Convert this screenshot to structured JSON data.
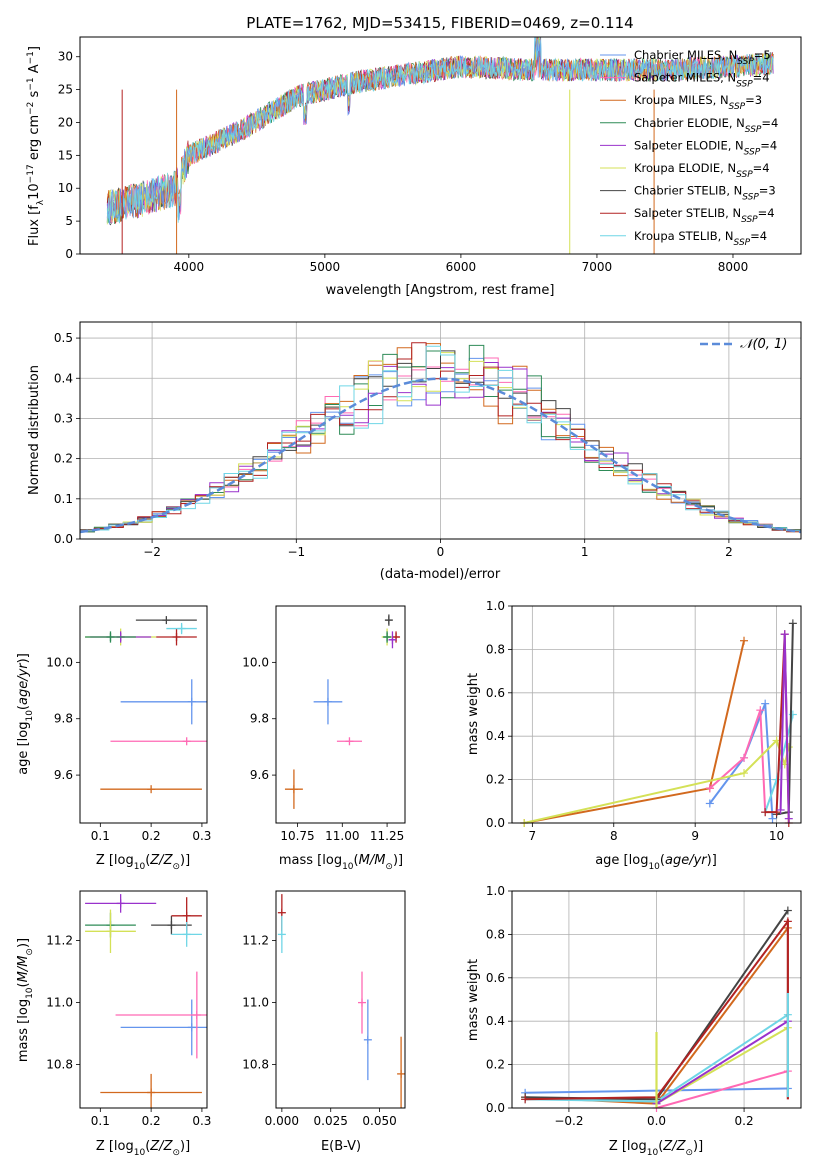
{
  "chart_data": [
    {
      "type": "line",
      "title": "PLATE=1762, MJD=53415, FIBERID=0469, z=0.114",
      "xlabel": "wavelength [Angstrom, rest frame]",
      "ylabel": "Flux [f_λ 10^-17 erg cm^-2 s^-1 A^-1]",
      "xlim": [
        3200,
        8500
      ],
      "ylim": [
        0,
        33
      ],
      "xticks": [
        "4000",
        "5000",
        "6000",
        "7000",
        "8000"
      ],
      "yticks": [
        "0",
        "5",
        "10",
        "15",
        "20",
        "25",
        "30"
      ],
      "legend_position": "top-right",
      "continuum": {
        "x": [
          3400,
          3600,
          3900,
          4000,
          4400,
          4800,
          5000,
          5200,
          5500,
          6000,
          6500,
          7000,
          7500,
          8000,
          8300
        ],
        "y": [
          7,
          8,
          10,
          15,
          19,
          24,
          25,
          26,
          27,
          28.5,
          28,
          28,
          28,
          28.5,
          29
        ]
      },
      "series": [
        {
          "name": "Chabrier MILES, N_SSP=5",
          "color": "#6495ed"
        },
        {
          "name": "Salpeter MILES, N_SSP=4",
          "color": "#ff69b4"
        },
        {
          "name": "Kroupa MILES, N_SSP=3",
          "color": "#d2691e"
        },
        {
          "name": "Chabrier ELODIE, N_SSP=4",
          "color": "#2e8b57"
        },
        {
          "name": "Salpeter ELODIE, N_SSP=4",
          "color": "#9932cc"
        },
        {
          "name": "Kroupa ELODIE, N_SSP=4",
          "color": "#d4e157"
        },
        {
          "name": "Chabrier STELIB, N_SSP=3",
          "color": "#444444"
        },
        {
          "name": "Salpeter STELIB, N_SSP=4",
          "color": "#b22222"
        },
        {
          "name": "Kroupa STELIB, N_SSP=4",
          "color": "#6fd6e6"
        }
      ]
    },
    {
      "type": "line",
      "xlabel": "(data-model)/error",
      "ylabel": "Normed distribution",
      "xlim": [
        -2.5,
        2.5
      ],
      "ylim": [
        0,
        0.54
      ],
      "xticks": [
        "−2",
        "−1",
        "0",
        "1",
        "2"
      ],
      "yticks": [
        "0.0",
        "0.1",
        "0.2",
        "0.3",
        "0.4",
        "0.5"
      ],
      "grid": true,
      "legend": "𝒩(0, 1)",
      "legend_position": "top-right",
      "bin_width": 0.1
    },
    {
      "type": "scatter",
      "xlabel": "Z [log10(Z/Z⊙)]",
      "ylabel": "age [log10(age/yr)]",
      "xlim": [
        0.06,
        0.31
      ],
      "ylim": [
        9.43,
        10.2
      ],
      "xticks": [
        "0.1",
        "0.2",
        "0.3"
      ],
      "yticks": [
        "9.6",
        "9.8",
        "10.0"
      ],
      "points": [
        {
          "x": 0.28,
          "xerr": 0.14,
          "y": 9.86,
          "yerr": 0.08,
          "color": "#6495ed"
        },
        {
          "x": 0.27,
          "xerr": 0.15,
          "y": 9.72,
          "yerr": 0.0,
          "color": "#ff69b4"
        },
        {
          "x": 0.2,
          "xerr": 0.1,
          "y": 9.55,
          "yerr": 0.0,
          "color": "#d2691e"
        },
        {
          "x": 0.14,
          "xerr": 0.07,
          "y": 10.09,
          "yerr": 0.03,
          "color": "#d4e157"
        },
        {
          "x": 0.14,
          "xerr": 0.06,
          "y": 10.09,
          "yerr": 0.02,
          "color": "#9932cc"
        },
        {
          "x": 0.12,
          "xerr": 0.05,
          "y": 10.09,
          "yerr": 0.02,
          "color": "#2e8b57"
        },
        {
          "x": 0.23,
          "xerr": 0.06,
          "y": 10.15,
          "yerr": 0.0,
          "color": "#444444"
        },
        {
          "x": 0.25,
          "xerr": 0.04,
          "y": 10.09,
          "yerr": 0.03,
          "color": "#b22222"
        },
        {
          "x": 0.26,
          "xerr": 0.03,
          "y": 10.12,
          "yerr": 0.02,
          "color": "#6fd6e6"
        }
      ]
    },
    {
      "type": "scatter",
      "xlabel": "mass [log10(M/M⊙)]",
      "ylabel": "",
      "xlim": [
        10.63,
        11.35
      ],
      "ylim": [
        9.43,
        10.2
      ],
      "xticks": [
        "10.75",
        "11.00",
        "11.25"
      ],
      "yticks": [
        "9.6",
        "9.8",
        "10.0"
      ],
      "points": [
        {
          "x": 10.92,
          "xerr": 0.08,
          "y": 9.86,
          "yerr": 0.08,
          "color": "#6495ed"
        },
        {
          "x": 11.04,
          "xerr": 0.07,
          "y": 9.72,
          "yerr": 0.0,
          "color": "#ff69b4"
        },
        {
          "x": 10.73,
          "xerr": 0.05,
          "y": 9.55,
          "yerr": 0.07,
          "color": "#d2691e"
        },
        {
          "x": 11.25,
          "xerr": 0.03,
          "y": 10.09,
          "yerr": 0.03,
          "color": "#d4e157"
        },
        {
          "x": 11.25,
          "xerr": 0.02,
          "y": 10.09,
          "yerr": 0.02,
          "color": "#2e8b57"
        },
        {
          "x": 11.26,
          "xerr": 0.02,
          "y": 10.15,
          "yerr": 0.02,
          "color": "#444444"
        },
        {
          "x": 11.3,
          "xerr": 0.02,
          "y": 10.09,
          "yerr": 0.02,
          "color": "#b22222"
        },
        {
          "x": 11.28,
          "xerr": 0.02,
          "y": 10.08,
          "yerr": 0.03,
          "color": "#9932cc"
        }
      ]
    },
    {
      "type": "line",
      "xlabel": "age [log10(age/yr)]",
      "ylabel": "mass weight",
      "xlim": [
        6.75,
        10.3
      ],
      "ylim": [
        0,
        1.0
      ],
      "xticks": [
        "7",
        "8",
        "9",
        "10"
      ],
      "yticks": [
        "0.0",
        "0.2",
        "0.4",
        "0.6",
        "0.8",
        "1.0"
      ],
      "grid": true,
      "series": [
        {
          "color": "#d2691e",
          "x": [
            6.9,
            9.18,
            9.6
          ],
          "y": [
            0.0,
            0.16,
            0.84
          ]
        },
        {
          "color": "#6495ed",
          "x": [
            9.18,
            9.6,
            9.86,
            9.95
          ],
          "y": [
            0.09,
            0.3,
            0.55,
            0.02
          ]
        },
        {
          "color": "#ff69b4",
          "x": [
            9.18,
            9.6,
            9.8,
            9.86
          ],
          "y": [
            0.16,
            0.3,
            0.52,
            0.05
          ]
        },
        {
          "color": "#d4e157",
          "x": [
            6.9,
            9.6,
            10.0,
            10.1,
            10.15
          ],
          "y": [
            0.0,
            0.23,
            0.38,
            0.27,
            0.35
          ]
        },
        {
          "color": "#6fd6e6",
          "x": [
            9.86,
            10.0,
            10.2
          ],
          "y": [
            0.05,
            0.2,
            0.5
          ]
        },
        {
          "color": "#444444",
          "x": [
            10.0,
            10.15,
            10.2
          ],
          "y": [
            0.04,
            0.05,
            0.92
          ]
        },
        {
          "color": "#b22222",
          "x": [
            9.86,
            10.0,
            10.1,
            10.15
          ],
          "y": [
            0.05,
            0.05,
            0.87,
            0.0
          ]
        },
        {
          "color": "#9932cc",
          "x": [
            10.05,
            10.1,
            10.15
          ],
          "y": [
            0.06,
            0.87,
            0.02
          ]
        }
      ]
    },
    {
      "type": "scatter",
      "xlabel": "Z [log10(Z/Z⊙)]",
      "ylabel": "mass [log10(M/M⊙)]",
      "xlim": [
        0.06,
        0.31
      ],
      "ylim": [
        10.66,
        11.36
      ],
      "xticks": [
        "0.1",
        "0.2",
        "0.3"
      ],
      "yticks": [
        "10.8",
        "11.0",
        "11.2"
      ],
      "points": [
        {
          "x": 0.28,
          "xerr": 0.14,
          "y": 10.92,
          "yerr": 0.09,
          "color": "#6495ed"
        },
        {
          "x": 0.29,
          "xerr": 0.16,
          "y": 10.96,
          "yerr": 0.14,
          "color": "#ff69b4"
        },
        {
          "x": 0.2,
          "xerr": 0.1,
          "y": 10.71,
          "yerr": 0.06,
          "color": "#d2691e"
        },
        {
          "x": 0.14,
          "xerr": 0.07,
          "y": 11.32,
          "yerr": 0.03,
          "color": "#9932cc"
        },
        {
          "x": 0.12,
          "xerr": 0.05,
          "y": 11.25,
          "yerr": 0.04,
          "color": "#2e8b57"
        },
        {
          "x": 0.12,
          "xerr": 0.05,
          "y": 11.23,
          "yerr": 0.07,
          "color": "#d4e157"
        },
        {
          "x": 0.24,
          "xerr": 0.04,
          "y": 11.25,
          "yerr": 0.03,
          "color": "#444444"
        },
        {
          "x": 0.27,
          "xerr": 0.03,
          "y": 11.28,
          "yerr": 0.06,
          "color": "#b22222"
        },
        {
          "x": 0.27,
          "xerr": 0.03,
          "y": 11.22,
          "yerr": 0.04,
          "color": "#6fd6e6"
        }
      ]
    },
    {
      "type": "scatter",
      "xlabel": "E(B-V)",
      "ylabel": "",
      "xlim": [
        -0.003,
        0.063
      ],
      "ylim": [
        10.66,
        11.36
      ],
      "xticks": [
        "0.000",
        "0.025",
        "0.050"
      ],
      "yticks": [
        "10.8",
        "11.0",
        "11.2"
      ],
      "points": [
        {
          "x": 0.044,
          "y": 10.88,
          "yerr": 0.13,
          "color": "#6495ed"
        },
        {
          "x": 0.041,
          "y": 11.0,
          "yerr": 0.1,
          "color": "#ff69b4"
        },
        {
          "x": 0.061,
          "y": 10.77,
          "yerr": 0.12,
          "color": "#d2691e"
        },
        {
          "x": 0.0,
          "y": 11.29,
          "yerr": 0.06,
          "color": "#b22222"
        },
        {
          "x": 0.0,
          "y": 11.22,
          "yerr": 0.06,
          "color": "#6fd6e6"
        }
      ]
    },
    {
      "type": "line",
      "xlabel": "Z [log10(Z/Z⊙)]",
      "ylabel": "mass weight",
      "xlim": [
        -0.33,
        0.33
      ],
      "ylim": [
        0,
        1.0
      ],
      "xticks": [
        "−0.2",
        "0.0",
        "0.2"
      ],
      "yticks": [
        "0.0",
        "0.2",
        "0.4",
        "0.6",
        "0.8",
        "1.0"
      ],
      "grid": true,
      "series": [
        {
          "color": "#6495ed",
          "x": [
            -0.3,
            0.0,
            0.3
          ],
          "y": [
            0.07,
            0.08,
            0.09
          ]
        },
        {
          "color": "#ff69b4",
          "x": [
            0.0,
            0.3
          ],
          "y": [
            0.0,
            0.17
          ]
        },
        {
          "color": "#d2691e",
          "x": [
            -0.3,
            0.0,
            0.3
          ],
          "y": [
            0.05,
            0.02,
            0.83
          ]
        },
        {
          "color": "#d4e157",
          "x": [
            0.0,
            0.3
          ],
          "y": [
            0.02,
            0.37
          ]
        },
        {
          "color": "#6fd6e6",
          "x": [
            -0.3,
            0.0,
            0.3
          ],
          "y": [
            0.04,
            0.03,
            0.43
          ]
        },
        {
          "color": "#444444",
          "x": [
            -0.3,
            0.0,
            0.3
          ],
          "y": [
            0.05,
            0.04,
            0.91
          ]
        },
        {
          "color": "#b22222",
          "x": [
            -0.3,
            0.0,
            0.3
          ],
          "y": [
            0.04,
            0.05,
            0.86
          ]
        },
        {
          "color": "#9932cc",
          "x": [
            0.0,
            0.3
          ],
          "y": [
            0.02,
            0.4
          ]
        }
      ],
      "vertical_markers": [
        {
          "x": 0.0,
          "y0": 0.0,
          "y1": 0.35,
          "color": "#d4e157"
        },
        {
          "x": 0.3,
          "y0": 0.04,
          "y1": 0.87,
          "color": "#b22222"
        },
        {
          "x": 0.3,
          "y0": 0.05,
          "y1": 0.53,
          "color": "#6fd6e6"
        }
      ]
    }
  ]
}
